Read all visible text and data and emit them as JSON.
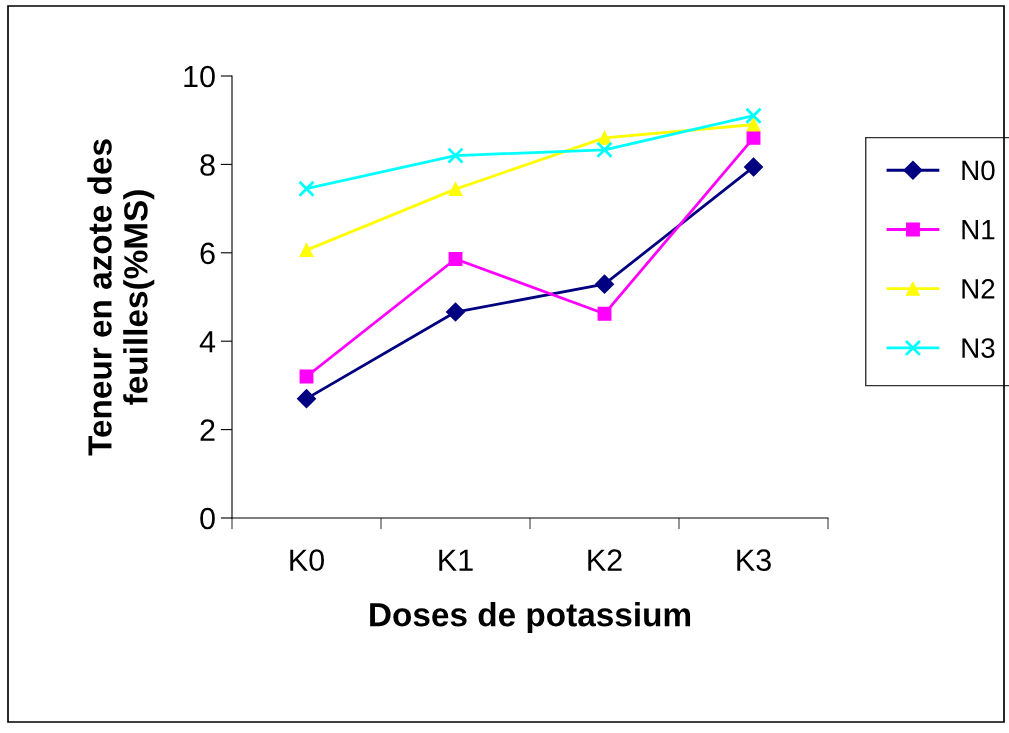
{
  "chart_data": {
    "type": "line",
    "xlabel": "Doses de potassium",
    "ylabel": "Teneur en azote des feuilles(%MS)",
    "categories": [
      "K0",
      "K1",
      "K2",
      "K3"
    ],
    "series": [
      {
        "name": "N0",
        "color": "#000080",
        "marker": "diamond",
        "values": [
          2.7,
          4.66,
          5.29,
          7.94
        ]
      },
      {
        "name": "N1",
        "color": "#ff00ff",
        "marker": "square",
        "values": [
          3.2,
          5.86,
          4.62,
          8.6
        ]
      },
      {
        "name": "N2",
        "color": "#ffff00",
        "marker": "triangle",
        "values": [
          6.06,
          7.44,
          8.6,
          8.9
        ]
      },
      {
        "name": "N3",
        "color": "#00ffff",
        "marker": "cross",
        "values": [
          7.45,
          8.2,
          8.33,
          9.1
        ]
      }
    ],
    "ylim": [
      0,
      10
    ],
    "yticks": [
      0,
      2,
      4,
      6,
      8,
      10
    ],
    "grid": false,
    "legend": "right",
    "line_style": "solid"
  }
}
